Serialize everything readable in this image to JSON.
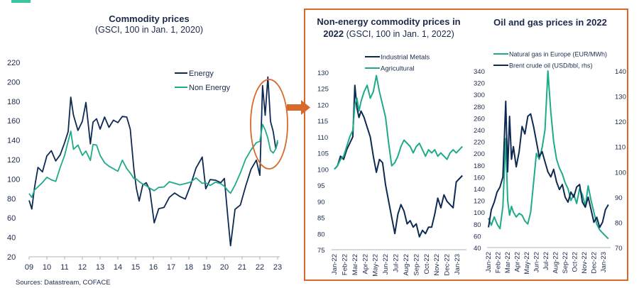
{
  "colors": {
    "energy": "#0e2a52",
    "non_energy": "#1faa8a",
    "accent": "#d9692a",
    "axis": "#a9b4c2"
  },
  "header": {
    "logo": "coface-logo"
  },
  "arrow": {
    "icon": "right-arrow-icon"
  },
  "left_title": "Commodity prices",
  "left_subtitle": "(GSCI, 100 in Jan. 1, 2020)",
  "middle_title_bold_1": "Non-energy commodity prices in",
  "middle_title_bold_2": "2022",
  "middle_title_rest": " (GSCI, 100 in Jan. 1, 2022)",
  "right_title": "Oil and gas prices in 2022",
  "sources": "Sources: Datastream, COFACE",
  "chart_data": [
    {
      "type": "line",
      "title": "Commodity prices",
      "subtitle": "(GSCI, 100 in Jan. 1, 2020)",
      "xlabel": "",
      "ylabel": "",
      "ylim": [
        20,
        220
      ],
      "yticks": [
        20,
        40,
        60,
        80,
        100,
        120,
        140,
        160,
        180,
        200,
        220
      ],
      "xlim": [
        2009,
        2023
      ],
      "xticks": [
        "09",
        "10",
        "11",
        "12",
        "13",
        "14",
        "15",
        "16",
        "17",
        "18",
        "19",
        "20",
        "21",
        "22",
        "23"
      ],
      "legend": "top-right",
      "annotation": "ellipse highlighting 2022",
      "x": [
        2009.0,
        2009.15,
        2009.3,
        2009.5,
        2009.75,
        2010.0,
        2010.25,
        2010.5,
        2010.75,
        2011.0,
        2011.2,
        2011.35,
        2011.5,
        2011.75,
        2012.0,
        2012.2,
        2012.45,
        2012.6,
        2012.8,
        2013.0,
        2013.25,
        2013.5,
        2013.75,
        2014.0,
        2014.25,
        2014.5,
        2014.7,
        2014.9,
        2015.05,
        2015.2,
        2015.4,
        2015.6,
        2015.8,
        2016.05,
        2016.3,
        2016.6,
        2016.9,
        2017.2,
        2017.5,
        2017.8,
        2018.1,
        2018.4,
        2018.75,
        2018.95,
        2019.2,
        2019.5,
        2019.8,
        2020.0,
        2020.2,
        2020.35,
        2020.6,
        2020.9,
        2021.2,
        2021.5,
        2021.8,
        2022.0,
        2022.15,
        2022.3,
        2022.45,
        2022.6,
        2022.75,
        2022.9,
        2023.0
      ],
      "series": [
        {
          "name": "Energy",
          "values": [
            78,
            68,
            90,
            112,
            108,
            125,
            128,
            118,
            125,
            138,
            150,
            183,
            165,
            150,
            160,
            180,
            135,
            158,
            162,
            152,
            165,
            152,
            160,
            158,
            165,
            165,
            150,
            110,
            90,
            78,
            95,
            95,
            88,
            55,
            70,
            72,
            80,
            85,
            82,
            80,
            95,
            110,
            122,
            90,
            100,
            100,
            95,
            100,
            60,
            32,
            70,
            72,
            92,
            110,
            120,
            105,
            195,
            165,
            205,
            160,
            150,
            130,
            138
          ]
        },
        {
          "name": "Non Energy",
          "values": [
            85,
            80,
            88,
            92,
            97,
            103,
            98,
            97,
            112,
            125,
            140,
            148,
            130,
            135,
            125,
            130,
            118,
            135,
            135,
            125,
            118,
            112,
            110,
            108,
            120,
            112,
            105,
            100,
            100,
            98,
            96,
            92,
            90,
            88,
            92,
            93,
            96,
            95,
            94,
            96,
            98,
            100,
            95,
            96,
            94,
            98,
            94,
            92,
            88,
            86,
            95,
            105,
            120,
            130,
            138,
            140,
            155,
            150,
            142,
            130,
            128,
            130,
            140
          ]
        }
      ]
    },
    {
      "type": "line",
      "title": "Non-energy commodity prices in 2022 (GSCI, 100 in Jan. 1, 2022)",
      "xlabel": "",
      "ylabel": "",
      "ylim": [
        75,
        130
      ],
      "yticks": [
        75,
        80,
        85,
        90,
        95,
        100,
        105,
        110,
        115,
        120,
        125,
        130
      ],
      "xticks": [
        "Jan-22",
        "Feb-22",
        "Mar-22",
        "Apr-22",
        "May-22",
        "Jun-22",
        "Jul-22",
        "Aug-22",
        "Sep-22",
        "Oct-22",
        "Nov-22",
        "Dec-22",
        "Jan-23"
      ],
      "legend": "top-center",
      "x": [
        0,
        0.3,
        0.6,
        0.9,
        1.2,
        1.5,
        1.8,
        2.0,
        2.2,
        2.4,
        2.6,
        2.9,
        3.2,
        3.5,
        3.8,
        4.1,
        4.4,
        4.7,
        5.0,
        5.3,
        5.6,
        5.9,
        6.2,
        6.5,
        6.8,
        7.1,
        7.4,
        7.7,
        8.0,
        8.3,
        8.6,
        8.9,
        9.2,
        9.5,
        9.8,
        10.1,
        10.4,
        10.7,
        11.0,
        11.3,
        11.6,
        11.9,
        12.2,
        12.5
      ],
      "series": [
        {
          "name": "Industrial Metals",
          "values": [
            100,
            101,
            104,
            103,
            106,
            108,
            110,
            126,
            119,
            116,
            118,
            116,
            113,
            110,
            104,
            99,
            103,
            102,
            95,
            90,
            85,
            80,
            86,
            89,
            87,
            83,
            84,
            82,
            83,
            79,
            81,
            80,
            82,
            82,
            86,
            91,
            88,
            92,
            90,
            89,
            88,
            96,
            97,
            98
          ]
        },
        {
          "name": "Agricultural",
          "values": [
            100,
            101,
            103,
            104,
            107,
            110,
            112,
            120,
            122,
            118,
            121,
            124,
            126,
            122,
            124,
            129,
            124,
            120,
            116,
            108,
            101,
            102,
            104,
            107,
            109,
            108,
            107,
            105,
            107,
            108,
            106,
            104,
            106,
            105,
            106,
            104,
            105,
            104,
            103,
            105,
            106,
            105,
            106,
            107
          ]
        }
      ]
    },
    {
      "type": "line",
      "title": "Oil and gas prices in 2022",
      "xlabel": "",
      "ylabel": "",
      "ylim": [
        40,
        340
      ],
      "y2lim": [
        70,
        140
      ],
      "yticks": [
        40,
        60,
        80,
        100,
        120,
        140,
        160,
        180,
        200,
        220,
        240,
        260,
        280,
        300,
        320,
        340
      ],
      "y2ticks": [
        70,
        80,
        90,
        100,
        110,
        120,
        130,
        140
      ],
      "xticks": [
        "Jan-22",
        "Feb-22",
        "Mar-22",
        "Apr-22",
        "May-22",
        "Jun-22",
        "Jul-22",
        "Aug-22",
        "Sep-22",
        "Oct-22",
        "Nov-22",
        "Dec-22",
        "Jan-23"
      ],
      "legend": "top-center",
      "x": [
        0,
        0.3,
        0.6,
        0.9,
        1.2,
        1.5,
        1.8,
        2.0,
        2.2,
        2.4,
        2.6,
        2.9,
        3.2,
        3.5,
        3.8,
        4.1,
        4.4,
        4.7,
        5.0,
        5.3,
        5.6,
        5.9,
        6.2,
        6.5,
        6.8,
        7.1,
        7.4,
        7.7,
        8.0,
        8.3,
        8.6,
        8.9,
        9.2,
        9.5,
        9.8,
        10.1,
        10.4,
        10.7,
        11.0,
        11.3,
        11.6,
        11.9,
        12.2,
        12.5
      ],
      "series": [
        {
          "name": "Natural gas in Europe (EUR/MWh)",
          "axis": "left",
          "values": [
            90,
            78,
            92,
            80,
            72,
            110,
            225,
            120,
            95,
            110,
            100,
            92,
            98,
            95,
            85,
            80,
            100,
            150,
            200,
            190,
            210,
            240,
            340,
            270,
            220,
            190,
            175,
            165,
            150,
            140,
            120,
            130,
            115,
            140,
            130,
            110,
            145,
            120,
            100,
            80,
            70,
            65,
            60,
            55
          ]
        },
        {
          "name": "Brent crude oil (USD/bbl, rhs)",
          "axis": "right",
          "values": [
            78,
            85,
            88,
            92,
            94,
            98,
            128,
            100,
            122,
            105,
            110,
            102,
            108,
            118,
            115,
            122,
            123,
            118,
            112,
            106,
            108,
            104,
            100,
            98,
            101,
            96,
            93,
            95,
            90,
            88,
            92,
            90,
            94,
            95,
            88,
            86,
            90,
            85,
            80,
            82,
            78,
            80,
            85,
            87
          ]
        }
      ]
    }
  ]
}
